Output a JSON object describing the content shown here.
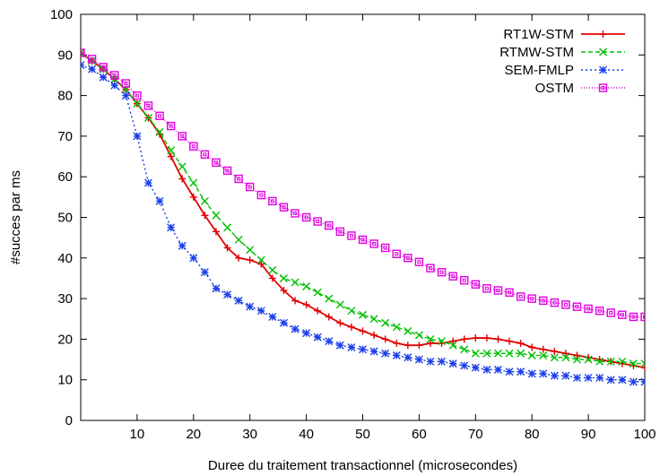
{
  "chart_data": {
    "type": "line",
    "title": "",
    "xlabel": "Duree du traitement transactionnel (microsecondes)",
    "ylabel": "#succes par ms",
    "xlim": [
      0,
      100
    ],
    "ylim": [
      0,
      100
    ],
    "xticks": [
      10,
      20,
      30,
      40,
      50,
      60,
      70,
      80,
      90,
      100
    ],
    "yticks": [
      0,
      10,
      20,
      30,
      40,
      50,
      60,
      70,
      80,
      90,
      100
    ],
    "grid": false,
    "legend_position": "top-right",
    "series": [
      {
        "name": "RT1W-STM",
        "color": "#e00000",
        "dash": "solid",
        "marker": "plus",
        "x": [
          0,
          2,
          4,
          6,
          8,
          10,
          12,
          14,
          16,
          18,
          20,
          22,
          24,
          26,
          28,
          30,
          32,
          34,
          36,
          38,
          40,
          42,
          44,
          46,
          48,
          50,
          52,
          54,
          56,
          58,
          60,
          62,
          64,
          66,
          68,
          70,
          72,
          74,
          76,
          78,
          80,
          82,
          84,
          86,
          88,
          90,
          92,
          94,
          96,
          98,
          100
        ],
        "y": [
          90.5,
          88.5,
          86.5,
          84,
          81.5,
          78,
          74.5,
          70.5,
          65,
          59.5,
          55,
          50.5,
          46.5,
          42.5,
          40,
          39.5,
          38.5,
          35,
          32,
          29.5,
          28.5,
          27,
          25.5,
          24,
          23,
          22,
          21,
          20,
          19,
          18.5,
          18.5,
          19,
          19,
          19.5,
          20,
          20.3,
          20.3,
          20,
          19.5,
          19,
          18,
          17.5,
          17,
          16.5,
          16,
          15.5,
          15,
          14.5,
          14,
          13.5,
          13
        ]
      },
      {
        "name": "RTMW-STM",
        "color": "#00c000",
        "dash": "dashed",
        "marker": "x",
        "x": [
          0,
          2,
          4,
          6,
          8,
          10,
          12,
          14,
          16,
          18,
          20,
          22,
          24,
          26,
          28,
          30,
          32,
          34,
          36,
          38,
          40,
          42,
          44,
          46,
          48,
          50,
          52,
          54,
          56,
          58,
          60,
          62,
          64,
          66,
          68,
          70,
          72,
          74,
          76,
          78,
          80,
          82,
          84,
          86,
          88,
          90,
          92,
          94,
          96,
          98,
          100
        ],
        "y": [
          90.5,
          88.5,
          86.5,
          84,
          81.5,
          78,
          74.5,
          71,
          66.5,
          62.5,
          58.5,
          54,
          50.5,
          47.5,
          44.5,
          42,
          39.5,
          37,
          35,
          34,
          33,
          31.5,
          30,
          28.5,
          27,
          26,
          25,
          24,
          23,
          22,
          21,
          20,
          19.5,
          18.5,
          17.5,
          16.5,
          16.5,
          16.5,
          16.5,
          16.5,
          16,
          16,
          15.5,
          15.5,
          15,
          15,
          14.5,
          14.5,
          14.5,
          14,
          14
        ]
      },
      {
        "name": "SEM-FMLP",
        "color": "#1a3ee8",
        "dash": "dotted",
        "marker": "star",
        "x": [
          0,
          2,
          4,
          6,
          8,
          10,
          12,
          14,
          16,
          18,
          20,
          22,
          24,
          26,
          28,
          30,
          32,
          34,
          36,
          38,
          40,
          42,
          44,
          46,
          48,
          50,
          52,
          54,
          56,
          58,
          60,
          62,
          64,
          66,
          68,
          70,
          72,
          74,
          76,
          78,
          80,
          82,
          84,
          86,
          88,
          90,
          92,
          94,
          96,
          98,
          100
        ],
        "y": [
          87.5,
          86.5,
          84.5,
          82.5,
          80,
          70,
          58.5,
          54,
          47.5,
          43,
          40,
          36.5,
          32.5,
          31,
          29.5,
          28,
          27,
          25.5,
          24,
          22.5,
          21.5,
          20.5,
          19.5,
          18.5,
          18,
          17.5,
          17,
          16.5,
          16,
          15.5,
          15,
          14.5,
          14.5,
          14,
          13.5,
          13,
          12.5,
          12.5,
          12,
          12,
          11.5,
          11.5,
          11,
          11,
          10.5,
          10.5,
          10.5,
          10,
          10,
          9.5,
          9.5
        ]
      },
      {
        "name": "OSTM",
        "color": "#e000e0",
        "dash": "fine-dotted",
        "marker": "square",
        "x": [
          0,
          2,
          4,
          6,
          8,
          10,
          12,
          14,
          16,
          18,
          20,
          22,
          24,
          26,
          28,
          30,
          32,
          34,
          36,
          38,
          40,
          42,
          44,
          46,
          48,
          50,
          52,
          54,
          56,
          58,
          60,
          62,
          64,
          66,
          68,
          70,
          72,
          74,
          76,
          78,
          80,
          82,
          84,
          86,
          88,
          90,
          92,
          94,
          96,
          98,
          100
        ],
        "y": [
          90.5,
          89,
          87,
          85,
          83,
          80,
          77.5,
          75,
          72.5,
          70,
          67.5,
          65.5,
          63.5,
          61.5,
          59.5,
          57.5,
          55.5,
          54,
          52.5,
          51,
          50,
          49,
          48,
          46.5,
          45.5,
          44.5,
          43.5,
          42.5,
          41,
          40,
          39,
          37.5,
          36.5,
          35.5,
          34.5,
          33.5,
          32.5,
          32,
          31.5,
          30.5,
          30,
          29.5,
          29,
          28.5,
          28,
          27.5,
          27,
          26.5,
          26,
          25.5,
          25.5
        ]
      }
    ]
  }
}
